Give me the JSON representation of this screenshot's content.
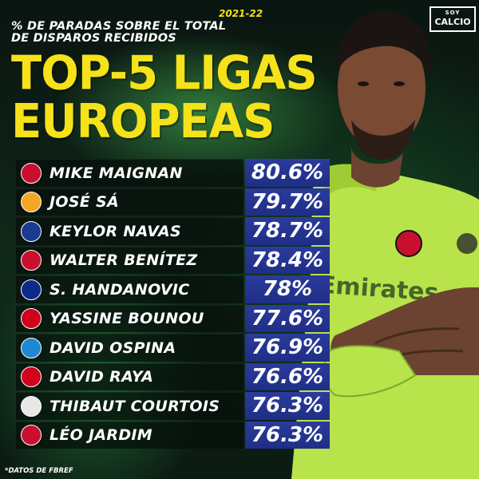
{
  "header": {
    "subtitle_line1": "% DE PARADAS SOBRE EL TOTAL",
    "subtitle_line2": "DE DISPAROS RECIBIDOS",
    "season": "2021-22",
    "title_line1": "TOP-5 LIGAS",
    "title_line2": "EUROPEAS"
  },
  "brand": {
    "top": "SOY",
    "bottom": "CALCIO"
  },
  "chart_data": {
    "type": "table",
    "categories": [
      "MIKE MAIGNAN",
      "JOSÉ SÁ",
      "KEYLOR NAVAS",
      "WALTER BENÍTEZ",
      "S. HANDANOVIC",
      "YASSINE BOUNOU",
      "DAVID OSPINA",
      "DAVID RAYA",
      "THIBAUT COURTOIS",
      "LÉO JARDIM"
    ],
    "values": [
      80.6,
      79.7,
      78.7,
      78.4,
      78,
      77.6,
      76.9,
      76.6,
      76.3,
      76.3
    ],
    "labels": [
      "80.6%",
      "79.7%",
      "78.7%",
      "78.4%",
      "78%",
      "77.6%",
      "76.9%",
      "76.6%",
      "76.3%",
      "76.3%"
    ]
  },
  "rows": [
    {
      "name": "MIKE MAIGNAN",
      "value": "80.6%",
      "crest_icon": "ac-milan-crest-icon",
      "crest_color": "#c8102e"
    },
    {
      "name": "JOSÉ SÁ",
      "value": "79.7%",
      "crest_icon": "wolves-crest-icon",
      "crest_color": "#f5a623"
    },
    {
      "name": "KEYLOR NAVAS",
      "value": "78.7%",
      "crest_icon": "psg-crest-icon",
      "crest_color": "#1b3b8f"
    },
    {
      "name": "WALTER BENÍTEZ",
      "value": "78.4%",
      "crest_icon": "nice-crest-icon",
      "crest_color": "#c8102e"
    },
    {
      "name": "S. HANDANOVIC",
      "value": "78%",
      "crest_icon": "inter-crest-icon",
      "crest_color": "#0a2a8c"
    },
    {
      "name": "YASSINE BOUNOU",
      "value": "77.6%",
      "crest_icon": "sevilla-crest-icon",
      "crest_color": "#d0021b"
    },
    {
      "name": "DAVID OSPINA",
      "value": "76.9%",
      "crest_icon": "napoli-crest-icon",
      "crest_color": "#1e88d2"
    },
    {
      "name": "DAVID RAYA",
      "value": "76.6%",
      "crest_icon": "brentford-crest-icon",
      "crest_color": "#d0021b"
    },
    {
      "name": "THIBAUT COURTOIS",
      "value": "76.3%",
      "crest_icon": "real-madrid-crest-icon",
      "crest_color": "#e8e8e8"
    },
    {
      "name": "LÉO JARDIM",
      "value": "76.3%",
      "crest_icon": "lille-crest-icon",
      "crest_color": "#c8102e"
    }
  ],
  "footnote": "*DATOS DE FBREF",
  "colors": {
    "accent_yellow": "#f5e21a",
    "value_blue": "#2a3b9c",
    "kit_green": "#b8e34a"
  }
}
